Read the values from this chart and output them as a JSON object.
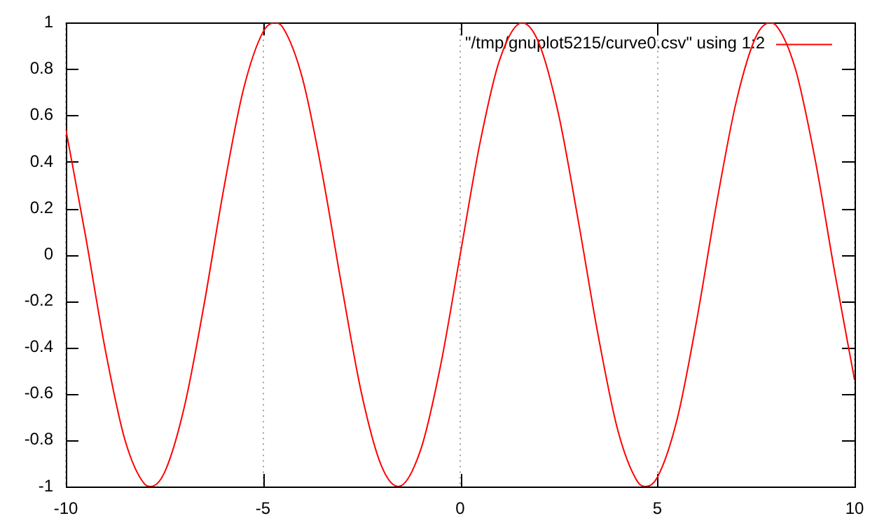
{
  "chart_data": {
    "type": "line",
    "x": [
      -10,
      -9.5,
      -9,
      -8.5,
      -8,
      -7.85,
      -7.5,
      -7,
      -6.5,
      -6,
      -5.5,
      -5,
      -4.71,
      -4.5,
      -4,
      -3.5,
      -3,
      -2.5,
      -2,
      -1.57,
      -1,
      -0.5,
      0,
      0.5,
      1,
      1.57,
      2,
      2.5,
      3,
      3.5,
      4,
      4.5,
      4.71,
      5,
      5.5,
      6,
      6.5,
      7,
      7.5,
      7.85,
      8,
      8.5,
      9,
      9.5,
      10
    ],
    "series": [
      {
        "name": "\"/tmp/gnuplot5215/curve0.csv\" using 1:2",
        "color": "#ff0000",
        "values": [
          0.54,
          0.08,
          -0.41,
          -0.8,
          -0.99,
          -1,
          -0.94,
          -0.66,
          -0.22,
          0.28,
          0.71,
          0.96,
          1,
          0.98,
          0.76,
          0.35,
          -0.14,
          -0.6,
          -0.91,
          -1,
          -0.84,
          -0.48,
          0,
          0.48,
          0.84,
          1,
          0.91,
          0.6,
          0.14,
          -0.35,
          -0.76,
          -0.98,
          -1,
          -0.96,
          -0.71,
          -0.28,
          0.22,
          0.66,
          0.94,
          1,
          0.99,
          0.8,
          0.41,
          -0.08,
          -0.54
        ]
      }
    ],
    "xlim": [
      -10,
      10
    ],
    "xticks": [
      -10,
      -5,
      0,
      5,
      10
    ],
    "ylim": [
      -1,
      1
    ],
    "yticks": [
      -1,
      -0.8,
      -0.6,
      -0.4,
      -0.2,
      0,
      0.2,
      0.4,
      0.6,
      0.8,
      1
    ],
    "grid": "x",
    "legend": "top right",
    "marker": "none",
    "line_style": "solid"
  }
}
